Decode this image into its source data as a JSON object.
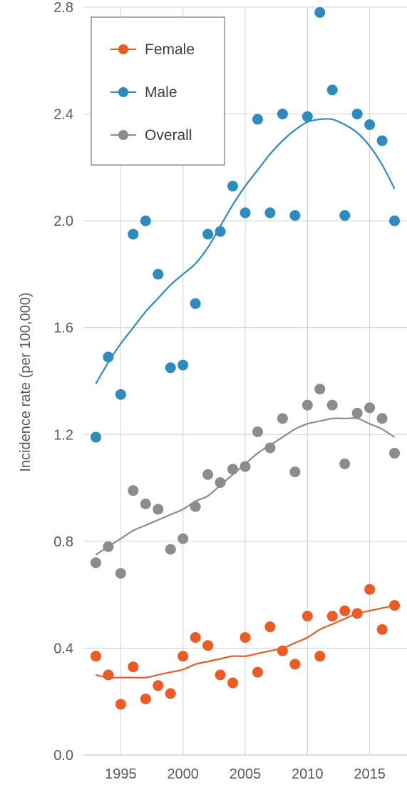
{
  "chart_data": {
    "type": "scatter",
    "title": "",
    "xlabel": "",
    "ylabel": "Incidence rate (per 100,000)",
    "xlim": [
      1992,
      2018
    ],
    "ylim": [
      0.0,
      2.8
    ],
    "x_ticks": [
      1995,
      2000,
      2005,
      2010,
      2015
    ],
    "y_ticks": [
      0.0,
      0.4,
      0.8,
      1.2,
      1.6,
      2.0,
      2.4,
      2.8
    ],
    "y_tick_labels": [
      "0.0",
      "0.4",
      "0.8",
      "1.2",
      "1.6",
      "2.0",
      "2.4",
      "2.8"
    ],
    "grid": true,
    "legend_position": "top-left",
    "x": [
      1993,
      1994,
      1995,
      1996,
      1997,
      1998,
      1999,
      2000,
      2001,
      2002,
      2003,
      2004,
      2005,
      2006,
      2007,
      2008,
      2009,
      2010,
      2011,
      2012,
      2013,
      2014,
      2015,
      2016,
      2017
    ],
    "series": [
      {
        "name": "Female",
        "color": "#ee5a24",
        "points": [
          0.37,
          0.3,
          0.19,
          0.33,
          0.21,
          0.26,
          0.23,
          0.37,
          0.44,
          0.41,
          0.3,
          0.27,
          0.44,
          0.31,
          0.48,
          0.39,
          0.34,
          0.52,
          0.37,
          0.52,
          0.54,
          0.53,
          0.62,
          0.47,
          0.56
        ],
        "trend": [
          0.3,
          0.29,
          0.29,
          0.29,
          0.29,
          0.3,
          0.31,
          0.32,
          0.34,
          0.35,
          0.36,
          0.37,
          0.37,
          0.38,
          0.39,
          0.4,
          0.42,
          0.44,
          0.47,
          0.49,
          0.51,
          0.53,
          0.54,
          0.55,
          0.56
        ]
      },
      {
        "name": "Male",
        "color": "#2e8bc0",
        "points": [
          1.19,
          1.49,
          1.35,
          1.95,
          2.0,
          1.8,
          1.45,
          1.46,
          1.69,
          1.95,
          1.96,
          2.13,
          2.03,
          2.38,
          2.03,
          2.4,
          2.02,
          2.39,
          2.78,
          2.49,
          2.02,
          2.4,
          2.36,
          2.3,
          2.0
        ],
        "trend": [
          1.39,
          1.47,
          1.54,
          1.6,
          1.66,
          1.71,
          1.76,
          1.8,
          1.84,
          1.9,
          1.98,
          2.06,
          2.13,
          2.19,
          2.25,
          2.3,
          2.34,
          2.37,
          2.38,
          2.38,
          2.36,
          2.33,
          2.28,
          2.21,
          2.12
        ]
      },
      {
        "name": "Overall",
        "color": "#8c8c8c",
        "points": [
          0.72,
          0.78,
          0.68,
          0.99,
          0.94,
          0.92,
          0.77,
          0.81,
          0.93,
          1.05,
          1.02,
          1.07,
          1.08,
          1.21,
          1.15,
          1.26,
          1.06,
          1.31,
          1.37,
          1.31,
          1.09,
          1.28,
          1.3,
          1.26,
          1.13
        ],
        "trend": [
          0.75,
          0.78,
          0.81,
          0.84,
          0.86,
          0.88,
          0.9,
          0.92,
          0.95,
          0.97,
          1.01,
          1.05,
          1.09,
          1.13,
          1.16,
          1.19,
          1.22,
          1.24,
          1.25,
          1.26,
          1.26,
          1.26,
          1.24,
          1.22,
          1.19
        ]
      }
    ]
  }
}
